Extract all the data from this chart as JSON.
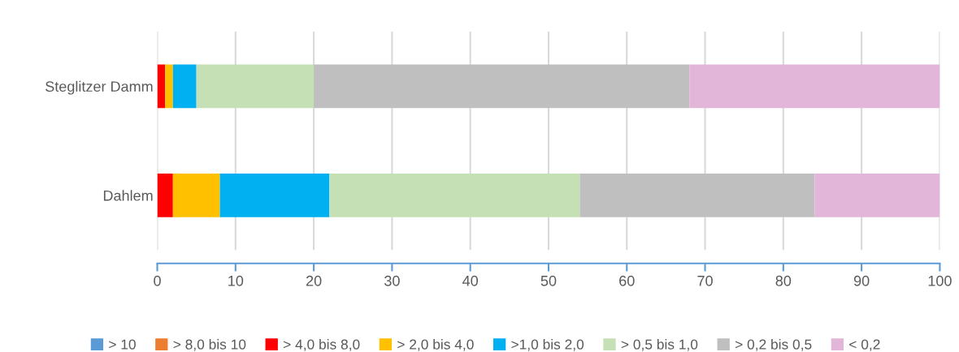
{
  "chart_data": {
    "type": "bar",
    "orientation": "horizontal",
    "stacked": true,
    "categories": [
      "Steglitzer Damm",
      "Dahlem"
    ],
    "series": [
      {
        "name": "> 10",
        "color": "#5b9bd5",
        "values": [
          0,
          0
        ]
      },
      {
        "name": "> 8,0 bis 10",
        "color": "#ed7d31",
        "values": [
          0,
          0
        ]
      },
      {
        "name": "> 4,0 bis 8,0",
        "color": "#ff0000",
        "values": [
          1,
          2
        ]
      },
      {
        "name": "> 2,0 bis 4,0",
        "color": "#ffc000",
        "values": [
          1,
          6
        ]
      },
      {
        "name": ">1,0 bis 2,0",
        "color": "#00b0f0",
        "values": [
          3,
          14
        ]
      },
      {
        "name": "> 0,5 bis 1,0",
        "color": "#c5e0b4",
        "values": [
          15,
          32
        ]
      },
      {
        "name": "> 0,2 bis 0,5",
        "color": "#bfbfbf",
        "values": [
          48,
          30
        ]
      },
      {
        "name": "< 0,2",
        "color": "#e2b6d8",
        "values": [
          32,
          16
        ]
      }
    ],
    "xlim": [
      0,
      100
    ],
    "xticks": [
      0,
      10,
      20,
      30,
      40,
      50,
      60,
      70,
      80,
      90,
      100
    ],
    "grid": "x",
    "legend": "bottom"
  }
}
